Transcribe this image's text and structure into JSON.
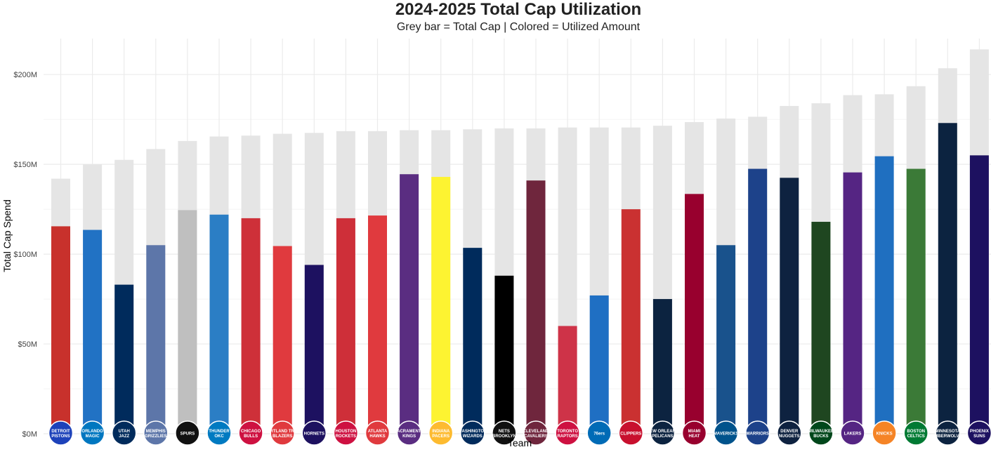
{
  "chart_data": {
    "type": "bar",
    "title": "2024-2025 Total Cap Utilization",
    "subtitle": "Grey bar = Total Cap | Colored = Utilized Amount",
    "xlabel": "Team",
    "ylabel": "Total Cap Spend",
    "ylim": [
      0,
      220000000
    ],
    "yticks": [
      0,
      50000000,
      100000000,
      150000000,
      200000000
    ],
    "ytick_labels": [
      "$0M",
      "$50M",
      "$100M",
      "$150M",
      "$200M"
    ],
    "grid": true,
    "total_cap_color": "#e5e5e5",
    "categories": [
      "Detroit Pistons",
      "Orlando Magic",
      "Utah Jazz",
      "Memphis Grizzlies",
      "San Antonio Spurs",
      "Oklahoma City Thunder",
      "Chicago Bulls",
      "Portland Trail Blazers",
      "Charlotte Hornets",
      "Houston Rockets",
      "Atlanta Hawks",
      "Sacramento Kings",
      "Indiana Pacers",
      "Washington Wizards",
      "Brooklyn Nets",
      "Cleveland Cavaliers",
      "Toronto Raptors",
      "Philadelphia 76ers",
      "LA Clippers",
      "New Orleans Pelicans",
      "Miami Heat",
      "Dallas Mavericks",
      "Golden State Warriors",
      "Denver Nuggets",
      "Milwaukee Bucks",
      "Los Angeles Lakers",
      "New York Knicks",
      "Boston Celtics",
      "Minnesota Timberwolves",
      "Phoenix Suns"
    ],
    "series": [
      {
        "name": "Total Cap",
        "values": [
          142000000,
          150000000,
          152500000,
          158500000,
          163000000,
          165500000,
          166000000,
          167000000,
          167500000,
          168500000,
          168500000,
          169000000,
          169000000,
          169500000,
          170000000,
          170000000,
          170500000,
          170500000,
          170500000,
          171500000,
          173500000,
          175500000,
          176500000,
          182500000,
          184000000,
          188500000,
          189000000,
          193500000,
          203500000,
          214000000
        ]
      },
      {
        "name": "Utilized Amount",
        "values": [
          115500000,
          113500000,
          83000000,
          105000000,
          124500000,
          122000000,
          120000000,
          104500000,
          94000000,
          120000000,
          121500000,
          144500000,
          143000000,
          103500000,
          88000000,
          141000000,
          60000000,
          77000000,
          125000000,
          75000000,
          133500000,
          105000000,
          147500000,
          142500000,
          118000000,
          145500000,
          154500000,
          147500000,
          173000000,
          155000000
        ]
      }
    ],
    "bar_colors": [
      "#c8312c",
      "#2172c4",
      "#002b5c",
      "#5d76a9",
      "#bfbfbf",
      "#2b7ec5",
      "#ce3039",
      "#e03a3e",
      "#1d1160",
      "#ce2f39",
      "#e03a3e",
      "#5a2d81",
      "#fdf331",
      "#002b5c",
      "#000000",
      "#6f263d",
      "#ce3348",
      "#1f6fc3",
      "#ca3131",
      "#0c2340",
      "#98002e",
      "#19528c",
      "#1d428a",
      "#0e2240",
      "#1f4620",
      "#552583",
      "#1f6fc0",
      "#3b7a37",
      "#0c2340",
      "#1d1160"
    ],
    "logo_labels": [
      "DETROIT PISTONS",
      "ORLANDO MAGIC",
      "UTAH JAZZ",
      "MEMPHIS GRIZZLIES",
      "SPURS",
      "THUNDER OKC",
      "CHICAGO BULLS",
      "PORTLAND TRAIL BLAZERS",
      "HORNETS",
      "HOUSTON ROCKETS",
      "ATLANTA HAWKS",
      "SACRAMENTO KINGS",
      "INDIANA PACERS",
      "WASHINGTON WIZARDS",
      "NETS BROOKLYN",
      "CLEVELAND CAVALIERS",
      "TORONTO RAPTORS",
      "76ers",
      "CLIPPERS",
      "NEW ORLEANS PELICANS",
      "MIAMI HEAT",
      "MAVERICKS",
      "WARRIORS",
      "DENVER NUGGETS",
      "MILWAUKEE BUCKS",
      "LAKERS",
      "KNICKS",
      "BOSTON CELTICS",
      "MINNESOTA TIMBERWOLVES",
      "PHOENIX SUNS"
    ],
    "logo_colors": [
      "#1d42ba",
      "#0077c0",
      "#002b5c",
      "#5d76a9",
      "#111111",
      "#007ac1",
      "#ce1141",
      "#e03a3e",
      "#1d1160",
      "#ce1141",
      "#e03a3e",
      "#5a2d81",
      "#fdbb30",
      "#002b5c",
      "#111111",
      "#6f263d",
      "#ce1141",
      "#006bb6",
      "#c8102e",
      "#0c2340",
      "#98002e",
      "#00538c",
      "#1d428a",
      "#0e2240",
      "#00471b",
      "#552583",
      "#f58426",
      "#007a33",
      "#0c2340",
      "#1d1160"
    ]
  }
}
